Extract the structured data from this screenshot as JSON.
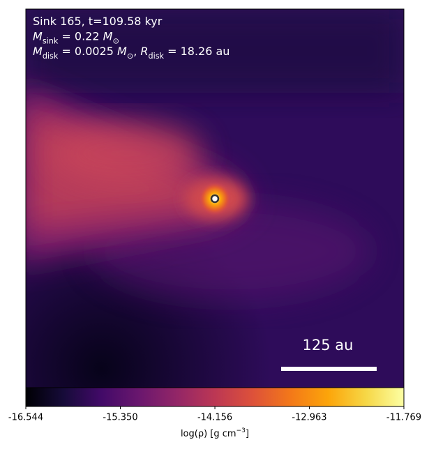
{
  "chart_data": {
    "type": "heatmap",
    "annotations": [
      [
        {
          "text": "Sink 165, t=109.58 kyr"
        }
      ],
      [
        {
          "text": "M",
          "italic": true
        },
        {
          "sub": "sink"
        },
        {
          "text": " = 0.22 "
        },
        {
          "text": "M",
          "italic": true
        },
        {
          "sub": "⊙"
        }
      ],
      [
        {
          "text": "M",
          "italic": true
        },
        {
          "sub": "disk"
        },
        {
          "text": " = 0.0025 "
        },
        {
          "text": "M",
          "italic": true
        },
        {
          "sub": "⊙"
        },
        {
          "text": ", "
        },
        {
          "text": "R",
          "italic": true
        },
        {
          "sub": "disk"
        },
        {
          "text": " = 18.26 au"
        }
      ]
    ],
    "scale_bar": "125 au",
    "colorbar": {
      "label": [
        {
          "text": "log(ρ) [g cm"
        },
        {
          "sup": "−3"
        },
        {
          "text": "]"
        }
      ],
      "lim": [
        -16.544,
        -11.769
      ],
      "ticks": [
        -16.544,
        {
          "value": -15.35,
          "label": "-15.350"
        },
        -14.156,
        -12.963,
        -11.769
      ],
      "colormap": "inferno"
    }
  }
}
